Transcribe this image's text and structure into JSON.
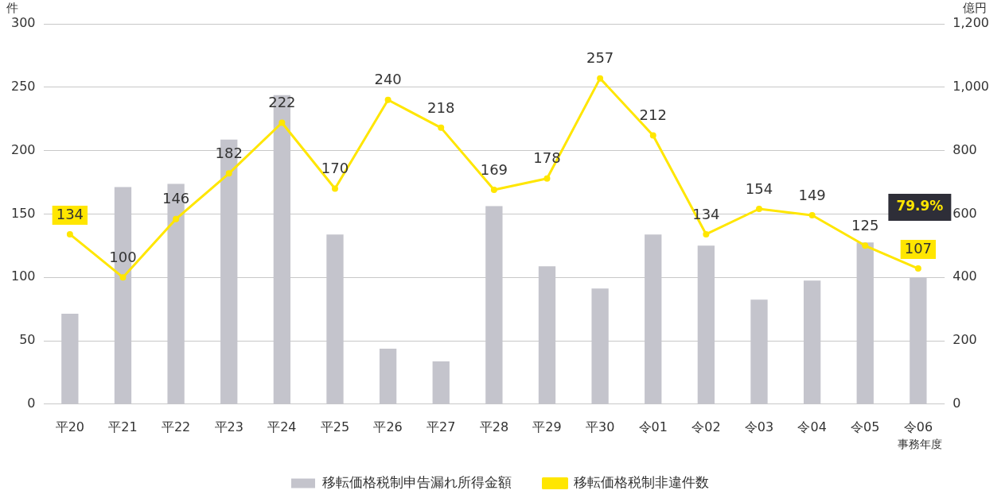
{
  "chart_data": {
    "type": "bar",
    "categories": [
      "平20",
      "平21",
      "平22",
      "平23",
      "平24",
      "平25",
      "平26",
      "平27",
      "平28",
      "平29",
      "平30",
      "令01",
      "令02",
      "令03",
      "令04",
      "令05",
      "令06"
    ],
    "series": [
      {
        "name": "移転価格税制申告漏れ所得金額",
        "axis": "y2",
        "color": "#c4c4cc",
        "values": [
          285,
          685,
          695,
          835,
          975,
          535,
          175,
          135,
          625,
          435,
          365,
          535,
          500,
          330,
          390,
          510,
          400
        ]
      },
      {
        "name": "移転価格税制非違件数",
        "type": "line",
        "axis": "y",
        "color": "#ffe600",
        "marker": "circle",
        "data_labels": true,
        "values": [
          134,
          100,
          146,
          182,
          222,
          170,
          240,
          218,
          169,
          178,
          257,
          212,
          134,
          154,
          149,
          125,
          107
        ]
      }
    ],
    "ylabel": "件",
    "y2label": "億円",
    "xlabel": "事務年度",
    "ylim": [
      0,
      300
    ],
    "yticks": [
      0,
      50,
      100,
      150,
      200,
      250,
      300
    ],
    "y2lim": [
      0,
      1200
    ],
    "y2ticks": [
      0,
      200,
      400,
      600,
      800,
      {
        "value": 1000,
        "label": "1,000"
      },
      {
        "value": 1200,
        "label": "1,200"
      }
    ],
    "annotations": [
      "79.9%"
    ],
    "grid": "y",
    "legend": "bottom"
  }
}
